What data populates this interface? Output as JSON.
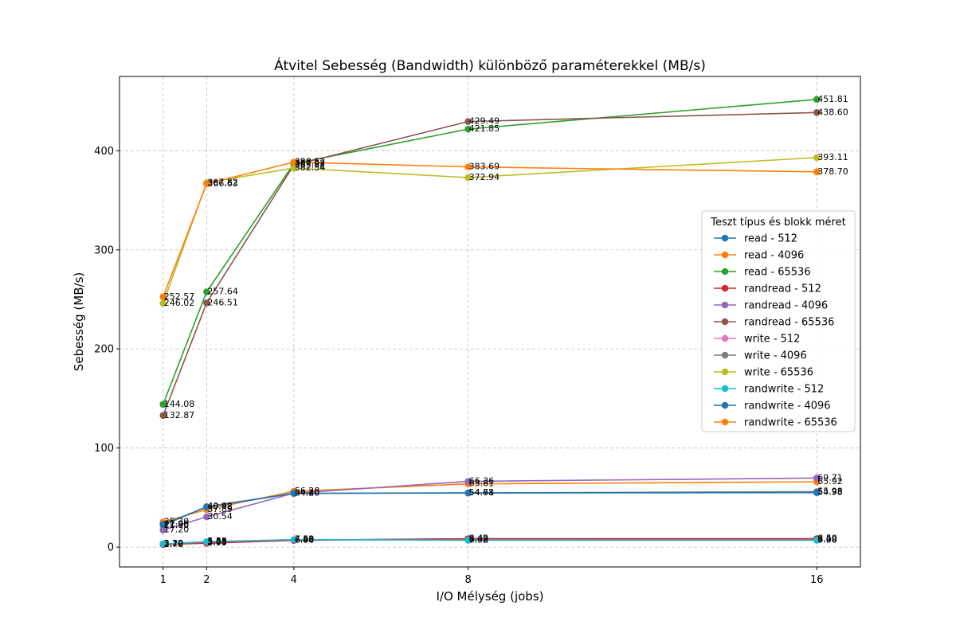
{
  "chart_data": {
    "type": "line",
    "title": "Átvitel Sebesség (Bandwidth) különböző paraméterekkel (MB/s)",
    "xlabel": "I/O Mélység (jobs)",
    "ylabel": "Sebesség (MB/s)",
    "x": [
      1,
      2,
      4,
      8,
      16
    ],
    "x_ticks": [
      "1",
      "2",
      "4",
      "8",
      "16"
    ],
    "xlim": [
      0.0,
      17.0
    ],
    "y_ticks": [
      "0",
      "100",
      "200",
      "300",
      "400"
    ],
    "ylim": [
      -20,
      475
    ],
    "grid": true,
    "legend_title": "Teszt típus és blokk méret",
    "legend_position": "center-right",
    "series": [
      {
        "name": "read - 512",
        "color": "#1f77b4",
        "values": [
          2.7,
          5.08,
          6.98,
          8.49,
          8.5
        ],
        "labels": [
          "2.70",
          "5.08",
          "6.98",
          "8.49",
          "8.50"
        ]
      },
      {
        "name": "read - 4096",
        "color": "#ff7f0e",
        "values": [
          25.3,
          37.89,
          56.28,
          63.81,
          65.92
        ],
        "labels": [
          "25.30",
          "37.89",
          "56.28",
          "63.81",
          "65.92"
        ]
      },
      {
        "name": "read - 65536",
        "color": "#2ca02c",
        "values": [
          144.08,
          257.64,
          387.02,
          421.85,
          451.81
        ],
        "labels": [
          "144.08",
          "257.64",
          "387.02",
          "421.85",
          "451.81"
        ]
      },
      {
        "name": "randread - 512",
        "color": "#d62728",
        "values": [
          2.72,
          3.93,
          6.8,
          8.42,
          8.4
        ],
        "labels": [
          "2.72",
          "3.93",
          "6.80",
          "8.42",
          "8.40"
        ]
      },
      {
        "name": "randread - 4096",
        "color": "#9467bd",
        "values": [
          17.2,
          30.54,
          54.4,
          66.36,
          69.71
        ],
        "labels": [
          "17.20",
          "30.54",
          "54.40",
          "66.36",
          "69.71"
        ]
      },
      {
        "name": "randread - 65536",
        "color": "#8c564b",
        "values": [
          132.87,
          246.51,
          385.52,
          429.49,
          438.6
        ],
        "labels": [
          "132.87",
          "246.51",
          "385.52",
          "429.49",
          "438.60"
        ]
      },
      {
        "name": "write - 512",
        "color": "#e377c2",
        "values": [
          3.2,
          5.35,
          7.6,
          7.02,
          7.0
        ],
        "labels": [
          "3.20",
          "5.35",
          "7.60",
          "7.02",
          "7.00"
        ]
      },
      {
        "name": "write - 4096",
        "color": "#7f7f7f",
        "values": [
          21.9,
          40.92,
          54.3,
          54.71,
          55.98
        ],
        "labels": [
          "21.90",
          "40.92",
          "54.30",
          "54.71",
          "55.98"
        ]
      },
      {
        "name": "write - 65536",
        "color": "#bcbd22",
        "values": [
          246.02,
          367.82,
          382.54,
          372.94,
          393.11
        ],
        "labels": [
          "246.02",
          "367.82",
          "382.54",
          "372.94",
          "393.11"
        ]
      },
      {
        "name": "randwrite - 512",
        "color": "#17becf",
        "values": [
          3.19,
          5.53,
          7.53,
          6.98,
          6.98
        ],
        "labels": [
          "3.19",
          "5.53",
          "7.53",
          "6.98",
          "6.98"
        ]
      },
      {
        "name": "randwrite - 4096",
        "color": "#1f77b4",
        "values": [
          22.96,
          40.48,
          54.2,
          54.68,
          54.98
        ],
        "labels": [
          "22.96",
          "40.48",
          "54.20",
          "54.68",
          "54.98"
        ]
      },
      {
        "name": "randwrite - 65536",
        "color": "#ff7f0e",
        "values": [
          252.57,
          366.63,
          388.52,
          383.69,
          378.7
        ],
        "labels": [
          "252.57",
          "366.63",
          "388.52",
          "383.69",
          "378.70"
        ]
      }
    ]
  }
}
